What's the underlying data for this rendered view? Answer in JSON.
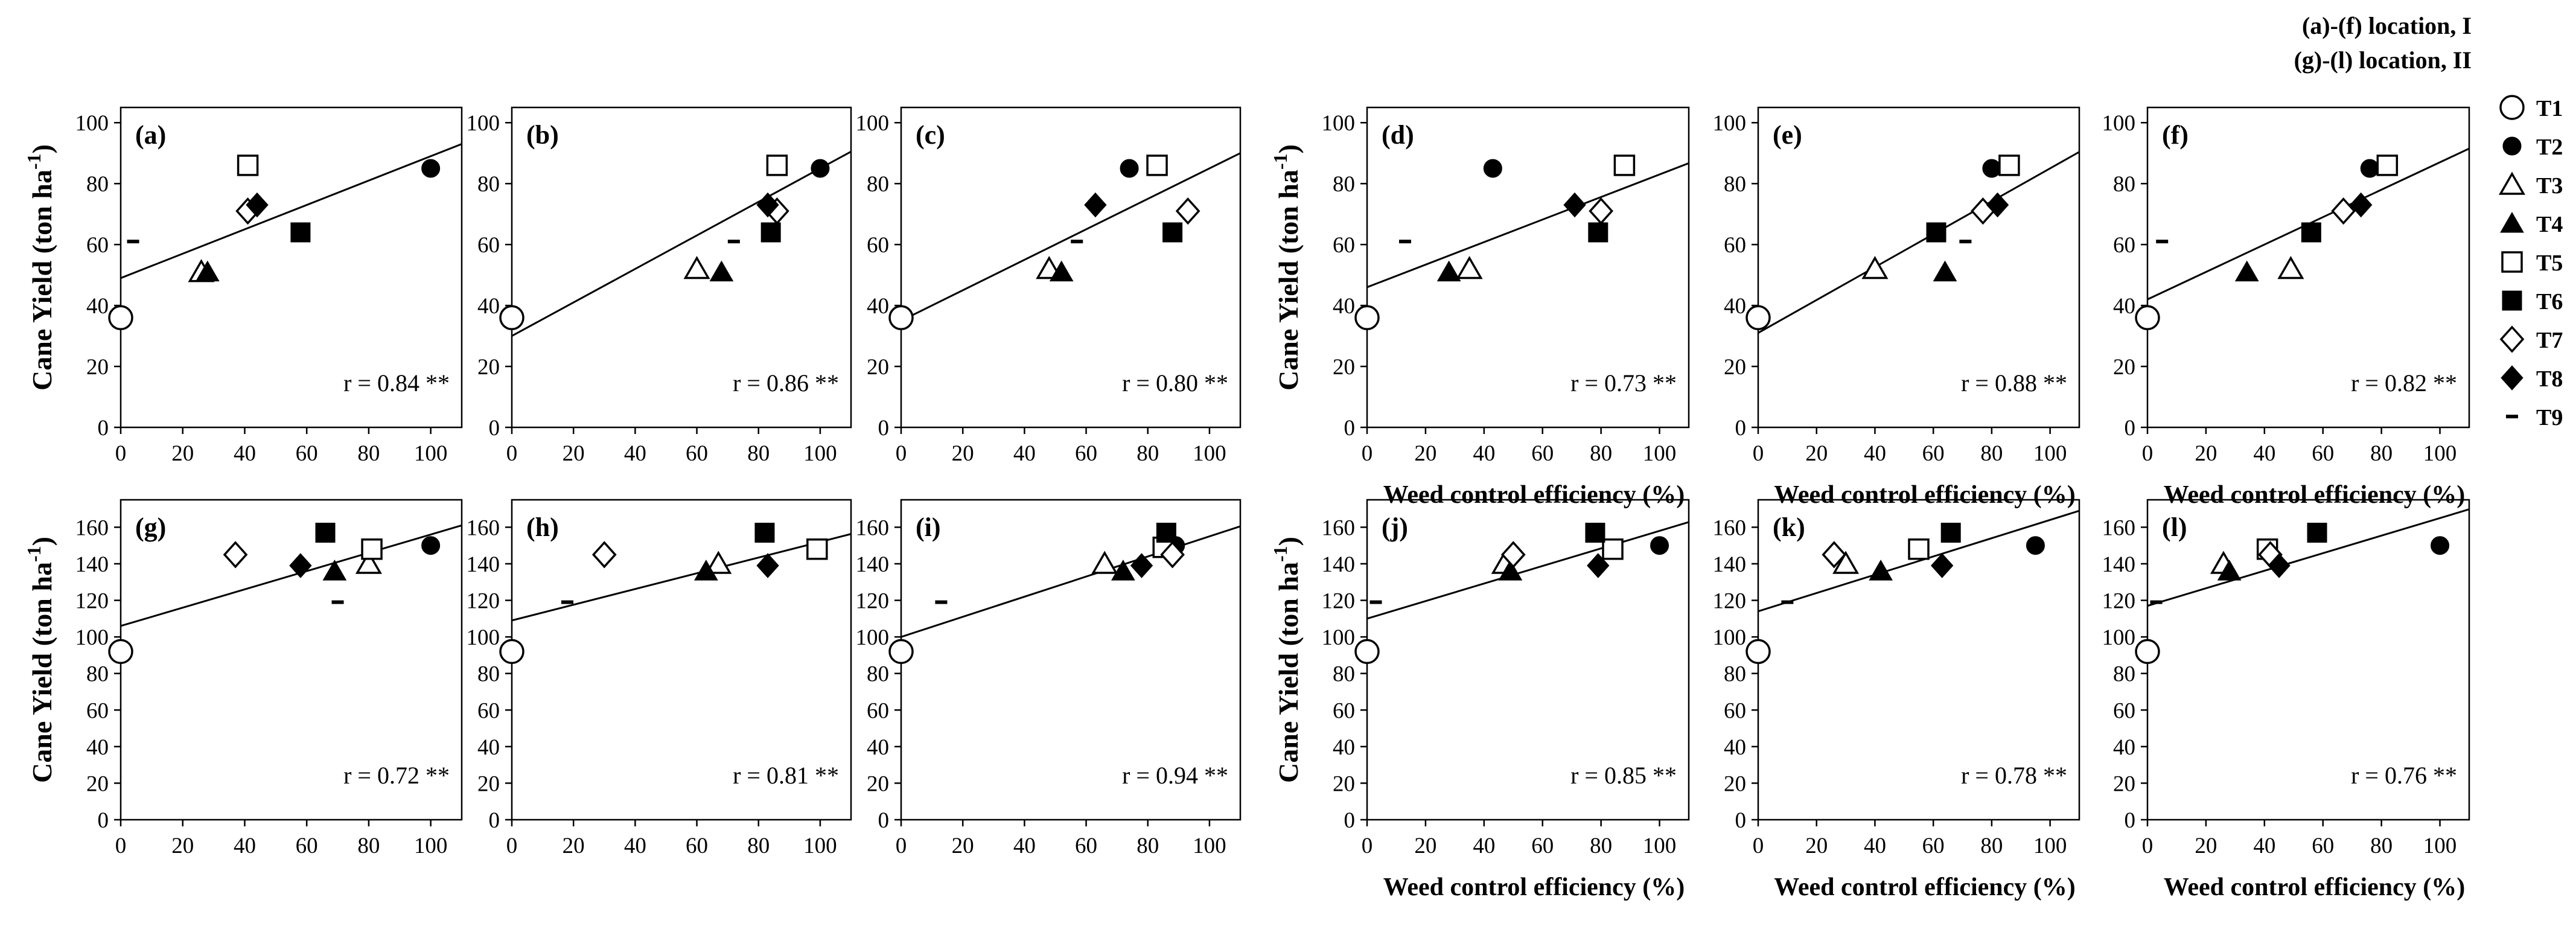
{
  "note_lines": [
    "(a)-(f) location, I",
    "(g)-(l) location, II"
  ],
  "legend": [
    {
      "name": "T1",
      "marker": "circle-open"
    },
    {
      "name": "T2",
      "marker": "circle-filled"
    },
    {
      "name": "T3",
      "marker": "triangle-open"
    },
    {
      "name": "T4",
      "marker": "triangle-filled"
    },
    {
      "name": "T5",
      "marker": "square-open"
    },
    {
      "name": "T6",
      "marker": "square-filled"
    },
    {
      "name": "T7",
      "marker": "diamond-open"
    },
    {
      "name": "T8",
      "marker": "diamond-filled"
    },
    {
      "name": "T9",
      "marker": "dash"
    }
  ],
  "chart_data": [
    {
      "type": "scatter",
      "label": "(a)",
      "xlabel": "",
      "ylabel": "Cane Yield (ton ha-1)",
      "xticks": [
        0,
        20,
        40,
        60,
        80,
        100
      ],
      "yticks": [
        0,
        20,
        40,
        60,
        80,
        100
      ],
      "xlim": [
        0,
        110
      ],
      "ylim": [
        0,
        105
      ],
      "fit": [
        49,
        0.4
      ],
      "r_text": "r = 0.84 **",
      "points": [
        [
          0,
          36,
          "T1"
        ],
        [
          100,
          85,
          "T2"
        ],
        [
          26,
          51,
          "T3"
        ],
        [
          28,
          51,
          "T4"
        ],
        [
          41,
          86,
          "T5"
        ],
        [
          58,
          64,
          "T6"
        ],
        [
          41,
          71,
          "T7"
        ],
        [
          44,
          73,
          "T8"
        ],
        [
          4,
          61,
          "T9"
        ]
      ]
    },
    {
      "type": "scatter",
      "label": "(b)",
      "xlabel": "",
      "ylabel": "",
      "xticks": [
        0,
        20,
        40,
        60,
        80,
        100
      ],
      "yticks": [
        0,
        20,
        40,
        60,
        80,
        100
      ],
      "xlim": [
        0,
        110
      ],
      "ylim": [
        0,
        105
      ],
      "fit": [
        30,
        0.55
      ],
      "r_text": "r = 0.86 **",
      "points": [
        [
          0,
          36,
          "T1"
        ],
        [
          100,
          85,
          "T2"
        ],
        [
          60,
          52,
          "T3"
        ],
        [
          68,
          51,
          "T4"
        ],
        [
          86,
          86,
          "T5"
        ],
        [
          84,
          64,
          "T6"
        ],
        [
          86,
          71,
          "T7"
        ],
        [
          83,
          73,
          "T8"
        ],
        [
          72,
          61,
          "T9"
        ]
      ]
    },
    {
      "type": "scatter",
      "label": "(c)",
      "xlabel": "",
      "ylabel": "",
      "xticks": [
        0,
        20,
        40,
        60,
        80,
        100
      ],
      "yticks": [
        0,
        20,
        40,
        60,
        80,
        100
      ],
      "xlim": [
        0,
        110
      ],
      "ylim": [
        0,
        105
      ],
      "fit": [
        35,
        0.5
      ],
      "r_text": "r = 0.80 **",
      "points": [
        [
          0,
          36,
          "T1"
        ],
        [
          74,
          85,
          "T2"
        ],
        [
          48,
          52,
          "T3"
        ],
        [
          52,
          51,
          "T4"
        ],
        [
          83,
          86,
          "T5"
        ],
        [
          88,
          64,
          "T6"
        ],
        [
          93,
          71,
          "T7"
        ],
        [
          63,
          73,
          "T8"
        ],
        [
          57,
          61,
          "T9"
        ]
      ]
    },
    {
      "type": "scatter",
      "label": "(d)",
      "xlabel": "Weed control efficiency (%)",
      "ylabel": "Cane Yield (ton ha-1)",
      "xticks": [
        0,
        20,
        40,
        60,
        80,
        100
      ],
      "yticks": [
        0,
        20,
        40,
        60,
        80,
        100
      ],
      "xlim": [
        0,
        110
      ],
      "ylim": [
        0,
        105
      ],
      "fit": [
        46,
        0.37
      ],
      "r_text": "r = 0.73 **",
      "points": [
        [
          0,
          36,
          "T1"
        ],
        [
          43,
          85,
          "T2"
        ],
        [
          35,
          52,
          "T3"
        ],
        [
          28,
          51,
          "T4"
        ],
        [
          88,
          86,
          "T5"
        ],
        [
          79,
          64,
          "T6"
        ],
        [
          80,
          71,
          "T7"
        ],
        [
          71,
          73,
          "T8"
        ],
        [
          13,
          61,
          "T9"
        ]
      ]
    },
    {
      "type": "scatter",
      "label": "(e)",
      "xlabel": "Weed control efficiency (%)",
      "ylabel": "",
      "xticks": [
        0,
        20,
        40,
        60,
        80,
        100
      ],
      "yticks": [
        0,
        20,
        40,
        60,
        80,
        100
      ],
      "xlim": [
        0,
        110
      ],
      "ylim": [
        0,
        105
      ],
      "fit": [
        31,
        0.54
      ],
      "r_text": "r = 0.88 **",
      "points": [
        [
          0,
          36,
          "T1"
        ],
        [
          80,
          85,
          "T2"
        ],
        [
          40,
          52,
          "T3"
        ],
        [
          64,
          51,
          "T4"
        ],
        [
          86,
          86,
          "T5"
        ],
        [
          61,
          64,
          "T6"
        ],
        [
          77,
          71,
          "T7"
        ],
        [
          82,
          73,
          "T8"
        ],
        [
          71,
          61,
          "T9"
        ]
      ]
    },
    {
      "type": "scatter",
      "label": "(f)",
      "xlabel": "Weed control efficiency (%)",
      "ylabel": "",
      "xticks": [
        0,
        20,
        40,
        60,
        80,
        100
      ],
      "yticks": [
        0,
        20,
        40,
        60,
        80,
        100
      ],
      "xlim": [
        0,
        110
      ],
      "ylim": [
        0,
        105
      ],
      "fit": [
        42,
        0.45
      ],
      "r_text": "r = 0.82 **",
      "points": [
        [
          0,
          36,
          "T1"
        ],
        [
          76,
          85,
          "T2"
        ],
        [
          49,
          52,
          "T3"
        ],
        [
          34,
          51,
          "T4"
        ],
        [
          82,
          86,
          "T5"
        ],
        [
          56,
          64,
          "T6"
        ],
        [
          67,
          71,
          "T7"
        ],
        [
          73,
          73,
          "T8"
        ],
        [
          5,
          61,
          "T9"
        ]
      ]
    },
    {
      "type": "scatter",
      "label": "(g)",
      "xlabel": "",
      "ylabel": "Cane Yield (ton ha-1)",
      "xticks": [
        0,
        20,
        40,
        60,
        80,
        100
      ],
      "yticks": [
        0,
        20,
        40,
        60,
        80,
        100,
        120,
        140,
        160
      ],
      "xlim": [
        0,
        110
      ],
      "ylim": [
        0,
        175
      ],
      "fit": [
        106,
        0.5
      ],
      "r_text": "r = 0.72 **",
      "points": [
        [
          0,
          92,
          "T1"
        ],
        [
          100,
          150,
          "T2"
        ],
        [
          80,
          140,
          "T3"
        ],
        [
          69,
          136,
          "T4"
        ],
        [
          81,
          148,
          "T5"
        ],
        [
          66,
          157,
          "T6"
        ],
        [
          37,
          145,
          "T7"
        ],
        [
          58,
          139,
          "T8"
        ],
        [
          70,
          119,
          "T9"
        ]
      ]
    },
    {
      "type": "scatter",
      "label": "(h)",
      "xlabel": "",
      "ylabel": "",
      "xticks": [
        0,
        20,
        40,
        60,
        80,
        100
      ],
      "yticks": [
        0,
        20,
        40,
        60,
        80,
        100,
        120,
        140,
        160
      ],
      "xlim": [
        0,
        110
      ],
      "ylim": [
        0,
        175
      ],
      "fit": [
        109,
        0.43
      ],
      "r_text": "r = 0.81 **",
      "points": [
        [
          0,
          92,
          "T1"
        ],
        [
          82,
          157,
          "T2"
        ],
        [
          67,
          140,
          "T3"
        ],
        [
          63,
          136,
          "T4"
        ],
        [
          99,
          148,
          "T5"
        ],
        [
          82,
          157,
          "T6"
        ],
        [
          30,
          145,
          "T7"
        ],
        [
          83,
          139,
          "T8"
        ],
        [
          18,
          119,
          "T9"
        ]
      ]
    },
    {
      "type": "scatter",
      "label": "(i)",
      "xlabel": "",
      "ylabel": "",
      "xticks": [
        0,
        20,
        40,
        60,
        80,
        100
      ],
      "yticks": [
        0,
        20,
        40,
        60,
        80,
        100,
        120,
        140,
        160
      ],
      "xlim": [
        0,
        110
      ],
      "ylim": [
        0,
        175
      ],
      "fit": [
        100,
        0.55
      ],
      "r_text": "r = 0.94 **",
      "points": [
        [
          0,
          92,
          "T1"
        ],
        [
          89,
          150,
          "T2"
        ],
        [
          66,
          140,
          "T3"
        ],
        [
          72,
          136,
          "T4"
        ],
        [
          85,
          149,
          "T5"
        ],
        [
          86,
          157,
          "T6"
        ],
        [
          88,
          145,
          "T7"
        ],
        [
          78,
          139,
          "T8"
        ],
        [
          13,
          119,
          "T9"
        ]
      ]
    },
    {
      "type": "scatter",
      "label": "(j)",
      "xlabel": "Weed control efficiency (%)",
      "ylabel": "Cane Yield (ton ha-1)",
      "xticks": [
        0,
        20,
        40,
        60,
        80,
        100
      ],
      "yticks": [
        0,
        20,
        40,
        60,
        80,
        100,
        120,
        140,
        160
      ],
      "xlim": [
        0,
        110
      ],
      "ylim": [
        0,
        175
      ],
      "fit": [
        110,
        0.48
      ],
      "r_text": "r = 0.85 **",
      "points": [
        [
          0,
          92,
          "T1"
        ],
        [
          100,
          150,
          "T2"
        ],
        [
          47,
          140,
          "T3"
        ],
        [
          49,
          136,
          "T4"
        ],
        [
          84,
          148,
          "T5"
        ],
        [
          78,
          157,
          "T6"
        ],
        [
          50,
          145,
          "T7"
        ],
        [
          79,
          139,
          "T8"
        ],
        [
          3,
          119,
          "T9"
        ]
      ]
    },
    {
      "type": "scatter",
      "label": "(k)",
      "xlabel": "Weed control efficiency (%)",
      "ylabel": "",
      "xticks": [
        0,
        20,
        40,
        60,
        80,
        100
      ],
      "yticks": [
        0,
        20,
        40,
        60,
        80,
        100,
        120,
        140,
        160
      ],
      "xlim": [
        0,
        110
      ],
      "ylim": [
        0,
        175
      ],
      "fit": [
        114,
        0.5
      ],
      "r_text": "r = 0.78 **",
      "points": [
        [
          0,
          92,
          "T1"
        ],
        [
          95,
          150,
          "T2"
        ],
        [
          30,
          140,
          "T3"
        ],
        [
          42,
          136,
          "T4"
        ],
        [
          55,
          148,
          "T5"
        ],
        [
          66,
          157,
          "T6"
        ],
        [
          26,
          145,
          "T7"
        ],
        [
          63,
          139,
          "T8"
        ],
        [
          10,
          119,
          "T9"
        ]
      ]
    },
    {
      "type": "scatter",
      "label": "(l)",
      "xlabel": "Weed control efficiency (%)",
      "ylabel": "",
      "xticks": [
        0,
        20,
        40,
        60,
        80,
        100
      ],
      "yticks": [
        0,
        20,
        40,
        60,
        80,
        100,
        120,
        140,
        160
      ],
      "xlim": [
        0,
        110
      ],
      "ylim": [
        0,
        175
      ],
      "fit": [
        117,
        0.48
      ],
      "r_text": "r = 0.76 **",
      "points": [
        [
          0,
          92,
          "T1"
        ],
        [
          100,
          150,
          "T2"
        ],
        [
          26,
          140,
          "T3"
        ],
        [
          28,
          136,
          "T4"
        ],
        [
          41,
          148,
          "T5"
        ],
        [
          58,
          157,
          "T6"
        ],
        [
          42,
          145,
          "T7"
        ],
        [
          45,
          139,
          "T8"
        ],
        [
          3,
          119,
          "T9"
        ]
      ]
    }
  ]
}
